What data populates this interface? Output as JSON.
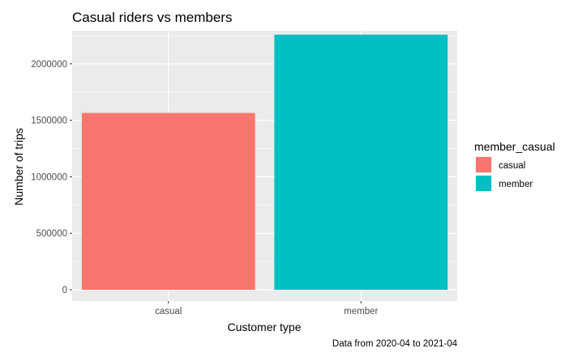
{
  "chart_data": {
    "type": "bar",
    "title": "Casual riders vs members",
    "xlabel": "Customer type",
    "ylabel": "Number of trips",
    "caption": "Data from 2020-04 to 2021-04",
    "categories": [
      "casual",
      "member"
    ],
    "values": [
      1565000,
      2258000
    ],
    "colors": [
      "#F8766D",
      "#00BFC4"
    ],
    "ylim": [
      0,
      2400000
    ],
    "yticks": [
      0,
      500000,
      1000000,
      1500000,
      2000000
    ],
    "ytick_labels": [
      "0",
      "500000",
      "1000000",
      "1500000",
      "2000000"
    ],
    "grid": true,
    "panel_background": "#EBEBEB",
    "legend": {
      "title": "member_casual",
      "position": "right",
      "entries": [
        "casual",
        "member"
      ]
    }
  }
}
